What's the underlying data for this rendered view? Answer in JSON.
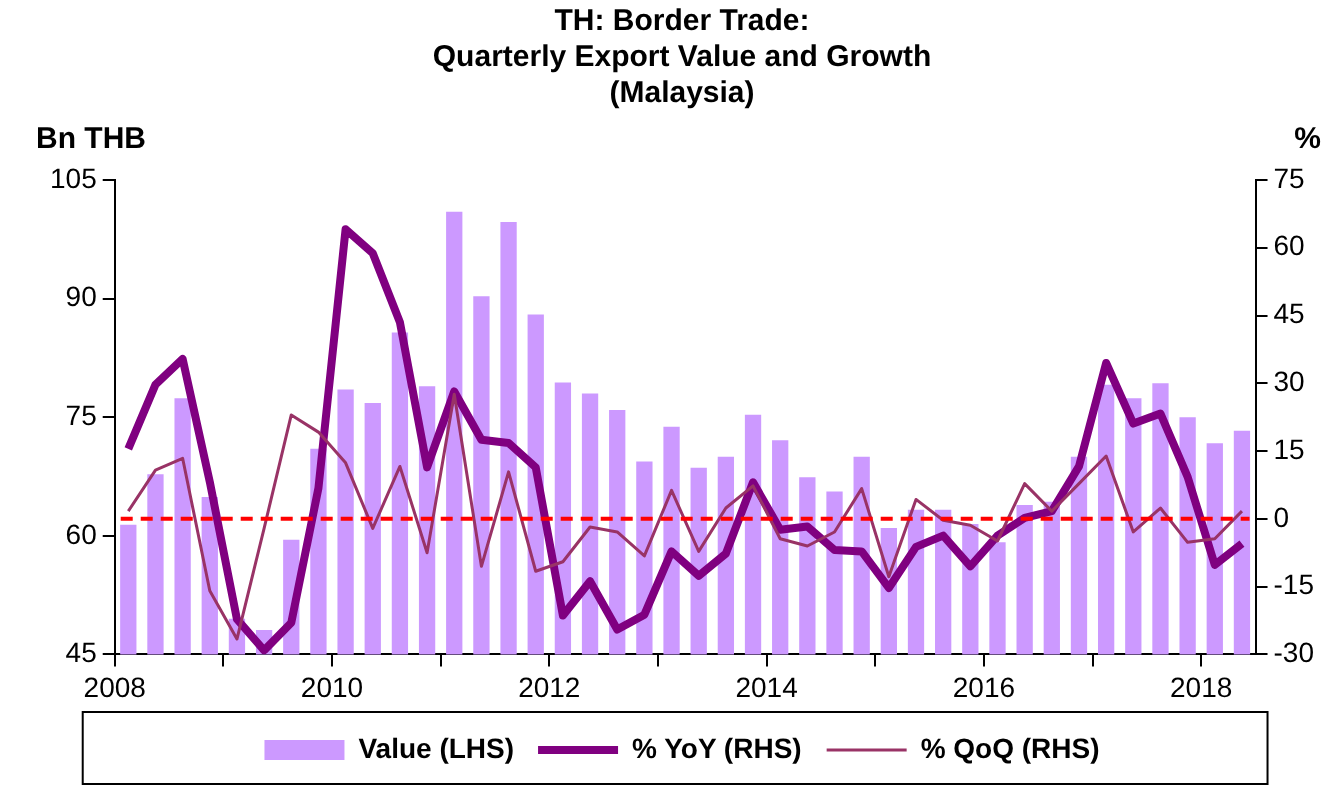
{
  "chart_data": {
    "type": "bar",
    "title": "TH: Border Trade:\nQuarterly Export Value and Growth\n(Malaysia)",
    "ylabel": "Bn THB",
    "y2label": "%",
    "x": [
      2008.125,
      2008.375,
      2008.625,
      2008.875,
      2009.125,
      2009.375,
      2009.625,
      2009.875,
      2010.125,
      2010.375,
      2010.625,
      2010.875,
      2011.125,
      2011.375,
      2011.625,
      2011.875,
      2012.125,
      2012.375,
      2012.625,
      2012.875,
      2013.125,
      2013.375,
      2013.625,
      2013.875,
      2014.125,
      2014.375,
      2014.625,
      2014.875,
      2015.125,
      2015.375,
      2015.625,
      2015.875,
      2016.125,
      2016.375,
      2016.625,
      2016.875,
      2017.125,
      2017.375,
      2017.625,
      2017.875,
      2018.125,
      2018.375
    ],
    "xlim": [
      2008,
      2018.5
    ],
    "xticks": [
      2008,
      {
        "value": 2009,
        "label": null
      },
      2010,
      {
        "value": 2011,
        "label": null
      },
      2012,
      {
        "value": 2013,
        "label": null
      },
      2014,
      {
        "value": 2015,
        "label": null
      },
      2016,
      {
        "value": 2017,
        "label": null
      },
      2018
    ],
    "ylim": [
      45,
      105
    ],
    "yticks": [
      45,
      60,
      75,
      90,
      105
    ],
    "y2lim": [
      -30,
      75
    ],
    "y2ticks": [
      -30,
      -15,
      0,
      15,
      30,
      45,
      60,
      75
    ],
    "series": [
      {
        "name": "Value (LHS)",
        "color": "#cc99ff",
        "values": [
          61.4,
          67.8,
          77.4,
          64.9,
          49.5,
          48.1,
          59.5,
          71.0,
          78.5,
          76.8,
          85.7,
          78.9,
          101.0,
          90.3,
          99.7,
          88.0,
          79.4,
          78.0,
          75.9,
          69.4,
          73.8,
          68.6,
          70.0,
          75.3,
          72.1,
          67.4,
          65.6,
          70.0,
          61.0,
          63.3,
          63.3,
          61.5,
          59.2,
          63.9,
          64.3,
          70.0,
          79.1,
          77.4,
          79.3,
          75.0,
          71.7,
          73.3
        ]
      },
      {
        "name": "% YoY (RHS)",
        "type": "line",
        "axis": "y2",
        "color": "#800080",
        "values": [
          15.5,
          29.7,
          35.4,
          8.2,
          -22.2,
          -29.1,
          -23.0,
          6.8,
          64.1,
          58.8,
          43.5,
          11.4,
          28.2,
          17.5,
          16.8,
          11.4,
          -21.4,
          -13.8,
          -24.5,
          -21.2,
          -7.2,
          -12.6,
          -7.7,
          8.1,
          -2.4,
          -1.7,
          -6.9,
          -7.2,
          -15.3,
          -6.2,
          -3.7,
          -10.5,
          -3.7,
          0.2,
          1.7,
          11.6,
          34.5,
          21.1,
          23.3,
          9.3,
          -10.2,
          -5.5
        ]
      },
      {
        "name": "% QoQ (RHS)",
        "type": "line",
        "axis": "y2",
        "color": "#993366",
        "values": [
          1.7,
          10.8,
          13.4,
          -15.9,
          -26.6,
          -2.1,
          23.0,
          19.2,
          12.4,
          -2.1,
          11.6,
          -7.5,
          27.6,
          -10.5,
          10.4,
          -11.6,
          -9.5,
          -1.8,
          -2.9,
          -8.2,
          6.3,
          -7.2,
          2.4,
          7.3,
          -4.4,
          -6.0,
          -2.9,
          6.7,
          -12.8,
          4.3,
          -0.3,
          -1.4,
          -4.9,
          7.8,
          1.7,
          7.8,
          13.9,
          -2.9,
          2.4,
          -5.2,
          -4.4,
          1.7
        ]
      }
    ],
    "ref_lines": [
      {
        "axis": "y2",
        "value": 0,
        "color": "#ff0000",
        "line_style": "dashed"
      }
    ],
    "legend": "bottom",
    "grid": false
  }
}
